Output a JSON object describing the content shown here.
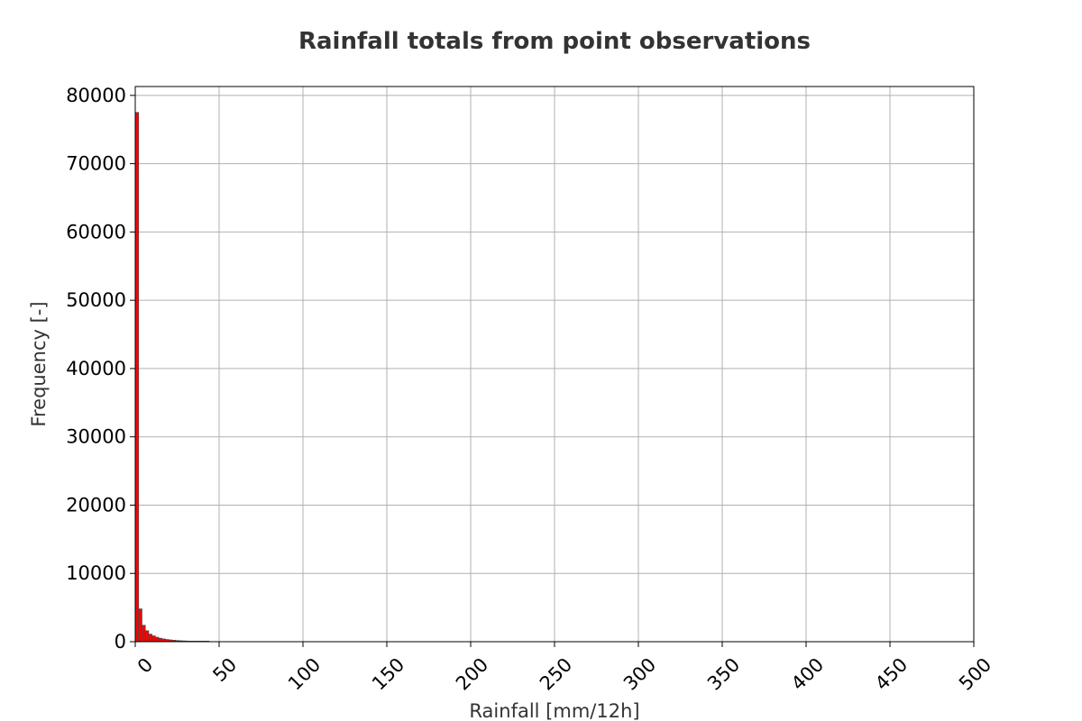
{
  "chart_data": {
    "type": "bar",
    "title": "Rainfall totals from point observations",
    "xlabel": "Rainfall [mm/12h]",
    "ylabel": "Frequency [-]",
    "xlim": [
      0,
      500
    ],
    "ylim": [
      0,
      81300
    ],
    "x_ticks": [
      "0",
      "50",
      "100",
      "150",
      "200",
      "250",
      "300",
      "350",
      "400",
      "450",
      "500"
    ],
    "y_ticks": [
      "0",
      "10000",
      "20000",
      "30000",
      "40000",
      "50000",
      "60000",
      "70000",
      "80000"
    ],
    "grid": true,
    "bin_width": 2,
    "bars": [
      {
        "x": 0,
        "value": 77500
      },
      {
        "x": 2,
        "value": 4800
      },
      {
        "x": 4,
        "value": 2400
      },
      {
        "x": 6,
        "value": 1600
      },
      {
        "x": 8,
        "value": 1100
      },
      {
        "x": 10,
        "value": 850
      },
      {
        "x": 12,
        "value": 650
      },
      {
        "x": 14,
        "value": 500
      },
      {
        "x": 16,
        "value": 400
      },
      {
        "x": 18,
        "value": 320
      },
      {
        "x": 20,
        "value": 260
      },
      {
        "x": 22,
        "value": 210
      },
      {
        "x": 24,
        "value": 170
      },
      {
        "x": 26,
        "value": 140
      },
      {
        "x": 28,
        "value": 115
      },
      {
        "x": 30,
        "value": 95
      },
      {
        "x": 32,
        "value": 80
      },
      {
        "x": 34,
        "value": 65
      },
      {
        "x": 36,
        "value": 55
      },
      {
        "x": 38,
        "value": 45
      },
      {
        "x": 40,
        "value": 38
      },
      {
        "x": 42,
        "value": 30
      }
    ],
    "bar_color": "#ff0000",
    "bar_edge_color": "#444444"
  }
}
